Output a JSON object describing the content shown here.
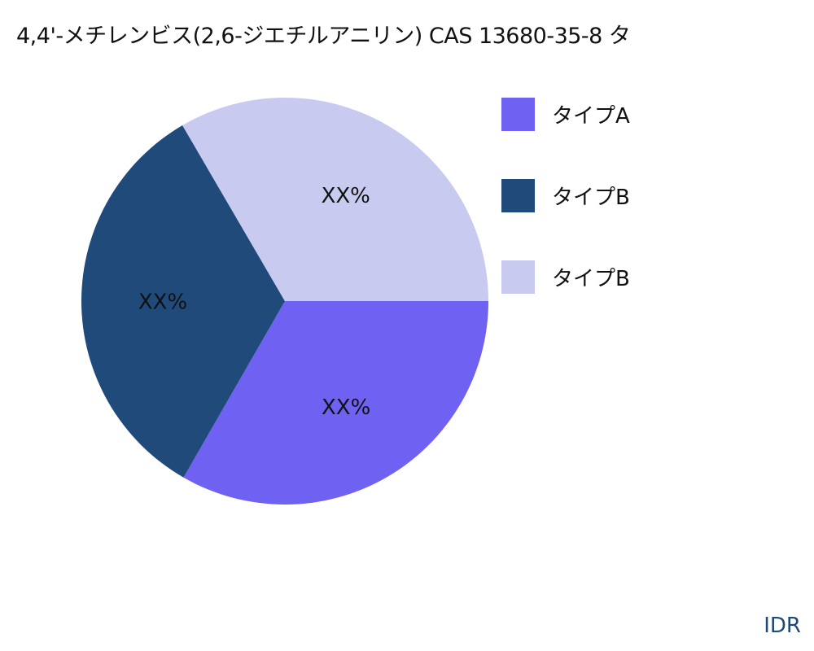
{
  "chart_data": {
    "type": "pie",
    "title": "4,4'-メチレンビス(2,6-ジエチルアニリン) CAS 13680-35-8 タ",
    "slices": [
      {
        "name": "タイプA",
        "value": 33.3,
        "label": "XX%",
        "color": "#6f61f2"
      },
      {
        "name": "タイプB",
        "value": 33.3,
        "label": "XX%",
        "color": "#1f4a7a"
      },
      {
        "name": "タイプB",
        "value": 33.4,
        "label": "XX%",
        "color": "#c9caf0"
      }
    ],
    "start_angle_deg": 0,
    "direction": "clockwise",
    "legend_position": "right"
  },
  "footer": "IDR"
}
